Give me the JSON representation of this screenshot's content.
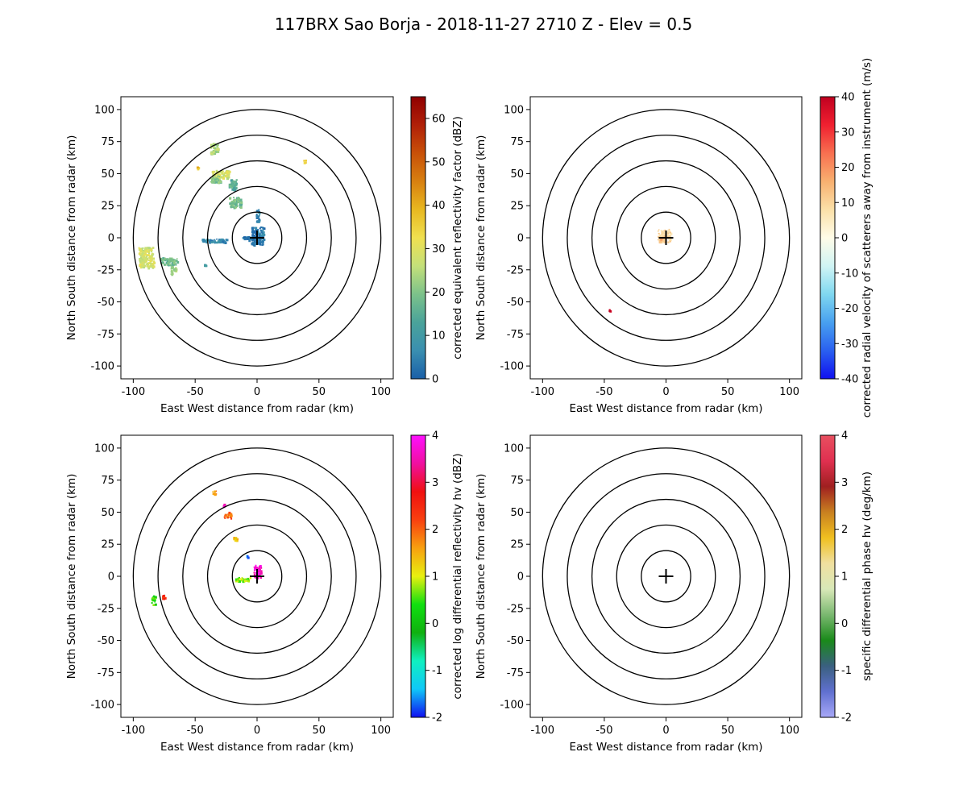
{
  "figure": {
    "title": "117BRX Sao Borja - 2018-11-27 2710 Z -  Elev = 0.5"
  },
  "chart_data": [
    {
      "type": "heatmap",
      "panel": "top-left",
      "xlabel": "East West distance from radar (km)",
      "ylabel": "North South distance from radar (km)",
      "xlim": [
        -110,
        110
      ],
      "ylim": [
        -110,
        110
      ],
      "xticks": [
        -100,
        -50,
        0,
        50,
        100
      ],
      "yticks": [
        -100,
        -75,
        -50,
        -25,
        0,
        25,
        50,
        75,
        100
      ],
      "range_rings_km": [
        20,
        40,
        60,
        80,
        100
      ],
      "colorbar": {
        "label": "corrected equivalent reflectivity factor (dBZ)",
        "range": [
          0,
          65
        ],
        "ticks": [
          0,
          10,
          20,
          30,
          40,
          50,
          60
        ],
        "colormap": [
          "#1a5fa8",
          "#3a8fb0",
          "#4aa39a",
          "#7cc28a",
          "#c4e07a",
          "#f0e050",
          "#e8b820",
          "#d88010",
          "#c85008",
          "#b02008",
          "#900000"
        ]
      },
      "echoes": [
        {
          "x": 0,
          "y": 2,
          "w": 10,
          "h": 14,
          "value": 4
        },
        {
          "x": -5,
          "y": 0,
          "w": 14,
          "h": 3,
          "value": 3
        },
        {
          "x": 0,
          "y": 18,
          "w": 3,
          "h": 10,
          "value": 6
        },
        {
          "x": -18,
          "y": 28,
          "w": 10,
          "h": 8,
          "value": 18
        },
        {
          "x": -30,
          "y": 50,
          "w": 14,
          "h": 6,
          "value": 28
        },
        {
          "x": -34,
          "y": 46,
          "w": 8,
          "h": 5,
          "value": 20
        },
        {
          "x": -35,
          "y": 70,
          "w": 6,
          "h": 8,
          "value": 24
        },
        {
          "x": -20,
          "y": 42,
          "w": 6,
          "h": 8,
          "value": 15
        },
        {
          "x": -90,
          "y": -15,
          "w": 12,
          "h": 16,
          "value": 28
        },
        {
          "x": -72,
          "y": -18,
          "w": 14,
          "h": 6,
          "value": 18
        },
        {
          "x": -68,
          "y": -25,
          "w": 4,
          "h": 6,
          "value": 24
        },
        {
          "x": -35,
          "y": -2,
          "w": 20,
          "h": 3,
          "value": 6
        },
        {
          "x": 38,
          "y": 60,
          "w": 2,
          "h": 2,
          "value": 35
        },
        {
          "x": -48,
          "y": 55,
          "w": 2,
          "h": 2,
          "value": 38
        },
        {
          "x": -42,
          "y": -20,
          "w": 2,
          "h": 3,
          "value": 8
        }
      ]
    },
    {
      "type": "heatmap",
      "panel": "top-right",
      "xlabel": "East West distance from radar (km)",
      "ylabel": "North South distance from radar (km)",
      "xlim": [
        -110,
        110
      ],
      "ylim": [
        -110,
        110
      ],
      "xticks": [
        -100,
        -50,
        0,
        50,
        100
      ],
      "yticks": [
        -100,
        -75,
        -50,
        -25,
        0,
        25,
        50,
        75,
        100
      ],
      "range_rings_km": [
        20,
        40,
        60,
        80,
        100
      ],
      "colorbar": {
        "label": "corrected radial velocity of scatterers away from instrument (m/s)",
        "range": [
          -40,
          40
        ],
        "ticks": [
          -40,
          -30,
          -20,
          -10,
          0,
          10,
          20,
          30,
          40
        ],
        "colormap": [
          "#1010f0",
          "#2a60f0",
          "#48a0f0",
          "#80d8f0",
          "#d0f4f4",
          "#fffce8",
          "#fbe0a8",
          "#f8b070",
          "#f87050",
          "#f02030",
          "#c00020"
        ]
      },
      "echoes": [
        {
          "x": -2,
          "y": 2,
          "w": 10,
          "h": 10,
          "value": 8
        },
        {
          "x": -4,
          "y": -1,
          "w": 6,
          "h": 3,
          "value": 14
        },
        {
          "x": -46,
          "y": -56,
          "w": 1.5,
          "h": 1.5,
          "value": 38
        }
      ]
    },
    {
      "type": "heatmap",
      "panel": "bottom-left",
      "xlabel": "East West distance from radar (km)",
      "ylabel": "North South distance from radar (km)",
      "xlim": [
        -110,
        110
      ],
      "ylim": [
        -110,
        110
      ],
      "xticks": [
        -100,
        -50,
        0,
        50,
        100
      ],
      "yticks": [
        -100,
        -75,
        -50,
        -25,
        0,
        25,
        50,
        75,
        100
      ],
      "range_rings_km": [
        20,
        40,
        60,
        80,
        100
      ],
      "colorbar": {
        "label": "corrected log differential reflectivity hv (dBZ)",
        "range": [
          -2,
          4
        ],
        "ticks": [
          -2,
          -1,
          0,
          1,
          2,
          3,
          4
        ],
        "colormap": [
          "#1010f0",
          "#10c8f8",
          "#10f0c0",
          "#10b010",
          "#10e010",
          "#e8f010",
          "#f8a010",
          "#f84010",
          "#f01010",
          "#f010a0",
          "#ff10ff"
        ]
      },
      "echoes": [
        {
          "x": 0,
          "y": 4,
          "w": 6,
          "h": 10,
          "value": 3.6
        },
        {
          "x": -12,
          "y": -2,
          "w": 12,
          "h": 3,
          "value": 0.8
        },
        {
          "x": -24,
          "y": 48,
          "w": 6,
          "h": 5,
          "value": 2.0
        },
        {
          "x": -35,
          "y": 66,
          "w": 3,
          "h": 3,
          "value": 1.8
        },
        {
          "x": -18,
          "y": 30,
          "w": 3,
          "h": 3,
          "value": 1.2
        },
        {
          "x": -84,
          "y": -18,
          "w": 3,
          "h": 8,
          "value": 0.4
        },
        {
          "x": -76,
          "y": -16,
          "w": 2,
          "h": 4,
          "value": 2.4
        },
        {
          "x": -28,
          "y": 56,
          "w": 2,
          "h": 2,
          "value": 3.8
        },
        {
          "x": -8,
          "y": 16,
          "w": 2,
          "h": 2,
          "value": -1.5
        }
      ]
    },
    {
      "type": "heatmap",
      "panel": "bottom-right",
      "xlabel": "East West distance from radar (km)",
      "ylabel": "North South distance from radar (km)",
      "xlim": [
        -110,
        110
      ],
      "ylim": [
        -110,
        110
      ],
      "xticks": [
        -100,
        -50,
        0,
        50,
        100
      ],
      "yticks": [
        -100,
        -75,
        -50,
        -25,
        0,
        25,
        50,
        75,
        100
      ],
      "range_rings_km": [
        20,
        40,
        60,
        80,
        100
      ],
      "colorbar": {
        "label": "specific differential phase hv (deg/km)",
        "range": [
          -2,
          4
        ],
        "ticks": [
          -2,
          -1,
          0,
          1,
          2,
          3,
          4
        ],
        "colormap": [
          "#a8a8f8",
          "#6070d0",
          "#3a6080",
          "#1a8a1a",
          "#7ab870",
          "#d8e8b8",
          "#f0e0a0",
          "#f0c020",
          "#c88020",
          "#a02020",
          "#e03050",
          "#e85060"
        ]
      },
      "echoes": []
    }
  ]
}
